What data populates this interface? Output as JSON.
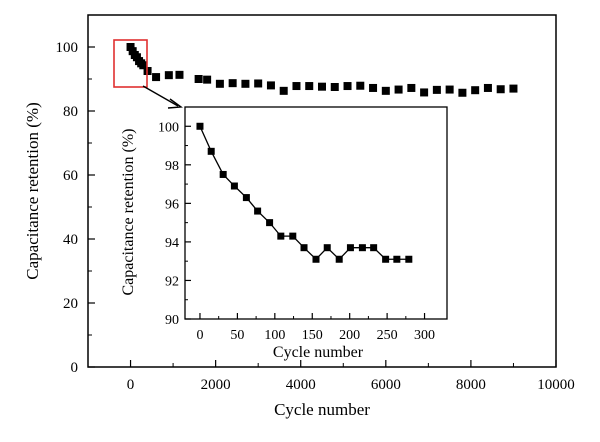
{
  "chart_data": [
    {
      "type": "scatter",
      "xlabel": "Cycle number",
      "ylabel": "Capacitance retention (%)",
      "xlim": [
        -1000,
        10000
      ],
      "ylim": [
        0,
        110
      ],
      "xticks": [
        0,
        2000,
        4000,
        6000,
        8000,
        10000
      ],
      "yticks": [
        0,
        20,
        40,
        60,
        80,
        100
      ],
      "grid": false,
      "marker": "square",
      "color": "#000000",
      "highlight_box_color": "#e03030",
      "x": [
        0,
        50,
        100,
        150,
        200,
        250,
        300,
        400,
        600,
        900,
        1150,
        1600,
        1800,
        2100,
        2400,
        2700,
        3000,
        3300,
        3600,
        3900,
        4200,
        4500,
        4800,
        5100,
        5400,
        5700,
        6000,
        6300,
        6600,
        6900,
        7200,
        7500,
        7800,
        8100,
        8400,
        8700,
        9000
      ],
      "y": [
        100,
        98.7,
        97.5,
        96.8,
        95.6,
        94.9,
        94.3,
        92.5,
        90.6,
        91.2,
        91.3,
        90.0,
        89.8,
        88.5,
        88.7,
        88.5,
        88.6,
        88.0,
        86.3,
        87.8,
        87.8,
        87.6,
        87.5,
        87.8,
        87.9,
        87.2,
        86.3,
        86.7,
        87.2,
        85.8,
        86.6,
        86.7,
        85.7,
        86.5,
        87.2,
        86.8,
        87.0
      ]
    },
    {
      "type": "line",
      "xlabel": "Cycle number",
      "ylabel": "Capacitance retention (%)",
      "xlim": [
        -20,
        330
      ],
      "ylim": [
        90,
        101
      ],
      "xticks": [
        0,
        50,
        100,
        150,
        200,
        250,
        300
      ],
      "yticks": [
        90,
        92,
        94,
        96,
        98,
        100
      ],
      "grid": false,
      "marker": "square",
      "color": "#000000",
      "x": [
        0,
        15,
        31,
        46,
        62,
        77,
        93,
        108,
        124,
        139,
        155,
        170,
        186,
        201,
        217,
        232,
        248,
        263,
        279
      ],
      "y": [
        100,
        98.7,
        97.5,
        96.9,
        96.3,
        95.6,
        95.0,
        94.3,
        94.3,
        93.7,
        93.1,
        93.7,
        93.1,
        93.7,
        93.7,
        93.7,
        93.1,
        93.1,
        93.1
      ]
    }
  ]
}
